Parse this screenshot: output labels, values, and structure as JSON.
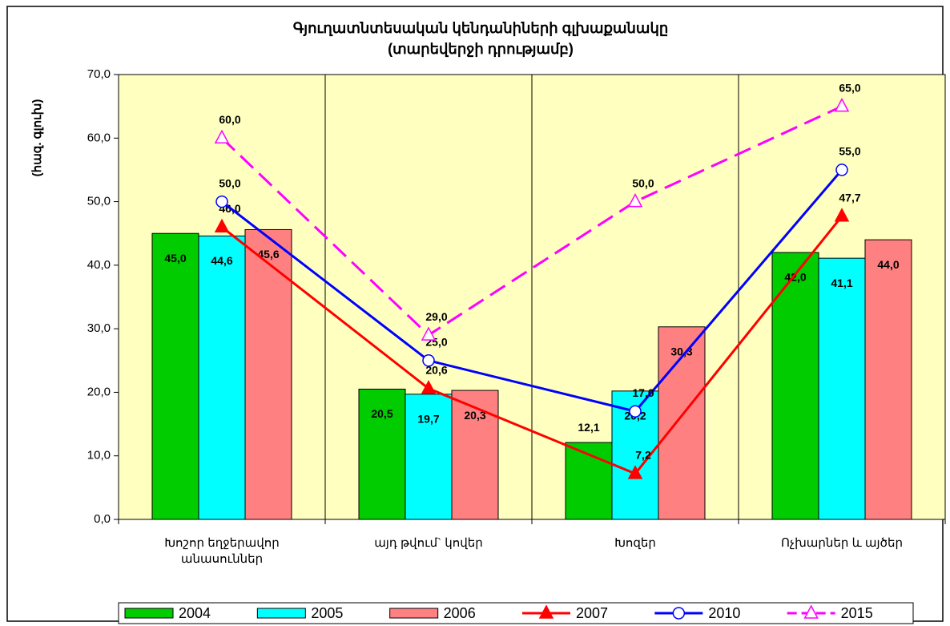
{
  "chart_data": {
    "type": "bar",
    "title": "Գյուղատնտեսական կենդանիների գլխաքանակը",
    "subtitle": "(տարեվերջի դրությամբ)",
    "y_label": "(հազ. գլուխ)",
    "categories": [
      "Խոշոր եղջերավոր\nանասուններ",
      "այդ թվում` կովեր",
      "Խոզեր",
      "Ոչխարներ և այծեր"
    ],
    "ylim": [
      0,
      70
    ],
    "yticks": [
      {
        "value": 0,
        "label": "0,0"
      },
      {
        "value": 10,
        "label": "10,0"
      },
      {
        "value": 20,
        "label": "20,0"
      },
      {
        "value": 30,
        "label": "30,0"
      },
      {
        "value": 40,
        "label": "40,0"
      },
      {
        "value": 50,
        "label": "50,0"
      },
      {
        "value": 60,
        "label": "60,0"
      },
      {
        "value": 70,
        "label": "70,0"
      }
    ],
    "background": "#ffffc0",
    "legend": "bottom",
    "series": [
      {
        "name": "2004",
        "type": "bar",
        "color": "#00cc00",
        "values": [
          45.0,
          20.5,
          12.1,
          42.0
        ],
        "value_labels": [
          "45,0",
          "20,5",
          "12,1",
          "42,0"
        ]
      },
      {
        "name": "2005",
        "type": "bar",
        "color": "#00ffff",
        "values": [
          44.6,
          19.7,
          20.2,
          41.1
        ],
        "value_labels": [
          "44,6",
          "19,7",
          "20,2",
          "41,1"
        ]
      },
      {
        "name": "2006",
        "type": "bar",
        "color": "#ff8080",
        "values": [
          45.6,
          20.3,
          30.3,
          44.0
        ],
        "value_labels": [
          "45,6",
          "20,3",
          "30,3",
          "44,0"
        ]
      },
      {
        "name": "2007",
        "type": "line",
        "color": "#ff0000",
        "marker": "triangle",
        "filled": true,
        "dashed": false,
        "values": [
          46.0,
          20.6,
          7.2,
          47.7
        ],
        "value_labels": [
          "46,0",
          "20,6",
          "7,2",
          "47,7"
        ]
      },
      {
        "name": "2010",
        "type": "line",
        "color": "#0000ff",
        "marker": "circle",
        "filled": false,
        "dashed": false,
        "values": [
          50.0,
          25.0,
          17.0,
          55.0
        ],
        "value_labels": [
          "50,0",
          "25,0",
          "17,0",
          "55,0"
        ]
      },
      {
        "name": "2015",
        "type": "line",
        "color": "#ff00ff",
        "marker": "triangle",
        "filled": false,
        "dashed": true,
        "values": [
          60.0,
          29.0,
          50.0,
          65.0
        ],
        "value_labels": [
          "60,0",
          "29,0",
          "50,0",
          "65,0"
        ]
      }
    ]
  }
}
